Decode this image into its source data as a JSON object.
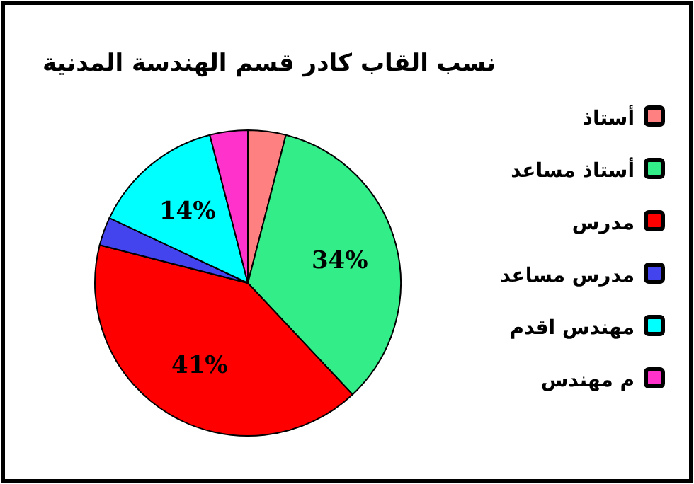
{
  "chart_data": {
    "type": "pie",
    "title": "نسب القاب كادر قسم الهندسة المدنية",
    "categories": [
      "أستاذ",
      "أستاذ مساعد",
      "مدرس",
      "مدرس مساعد",
      "مهندس اقدم",
      "م مهندس"
    ],
    "values": [
      4,
      34,
      41,
      3,
      14,
      4
    ],
    "colors": [
      "#ff8080",
      "#33ee88",
      "#ff0000",
      "#4444ee",
      "#00ffff",
      "#ff33cc"
    ],
    "value_labels": [
      null,
      "34%",
      "41%",
      null,
      "14%",
      null
    ],
    "legend": "right"
  }
}
